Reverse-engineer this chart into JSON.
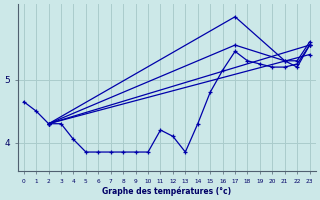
{
  "background_color": "#cce8e8",
  "grid_color": "#aacccc",
  "line_color": "#0000aa",
  "x_labels": [
    "0",
    "1",
    "2",
    "3",
    "4",
    "5",
    "6",
    "7",
    "8",
    "9",
    "10",
    "11",
    "12",
    "13",
    "14",
    "15",
    "16",
    "17",
    "18",
    "19",
    "20",
    "21",
    "22",
    "23"
  ],
  "xlabel": "Graphe des températures (°c)",
  "yticks": [
    4,
    5
  ],
  "ylim": [
    3.55,
    6.2
  ],
  "xlim": [
    -0.5,
    23.5
  ],
  "series": [
    {
      "x": [
        0,
        1,
        2,
        3,
        4,
        5,
        6,
        7,
        8,
        9,
        10,
        11,
        12,
        13,
        14,
        15,
        16,
        17,
        18,
        19,
        20,
        21,
        22,
        23
      ],
      "y": [
        4.65,
        4.5,
        4.3,
        4.3,
        4.05,
        3.85,
        3.85,
        3.85,
        3.85,
        3.85,
        3.85,
        4.2,
        4.1,
        3.85,
        4.3,
        4.8,
        5.15,
        5.45,
        5.3,
        5.25,
        5.2,
        5.2,
        5.25,
        5.55
      ]
    },
    {
      "x": [
        2,
        17,
        21,
        22,
        23
      ],
      "y": [
        4.3,
        6.0,
        5.3,
        5.3,
        5.6
      ]
    },
    {
      "x": [
        2,
        17,
        21,
        22,
        23
      ],
      "y": [
        4.3,
        5.55,
        5.3,
        5.2,
        5.55
      ]
    },
    {
      "x": [
        2,
        23
      ],
      "y": [
        4.3,
        5.55
      ]
    },
    {
      "x": [
        2,
        23
      ],
      "y": [
        4.3,
        5.4
      ]
    }
  ]
}
